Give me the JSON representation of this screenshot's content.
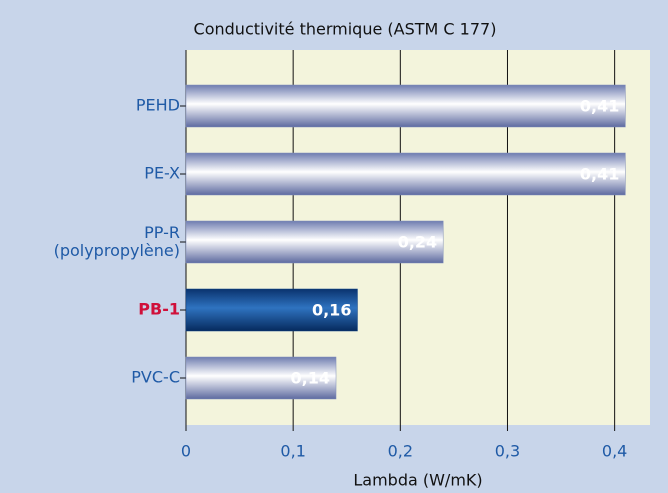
{
  "chart_data": {
    "type": "bar",
    "orientation": "horizontal",
    "title": "Conductivité thermique (ASTM C 177)",
    "x_label": "Lambda (W/mK)",
    "categories": [
      "PEHD",
      "PE-X",
      "PP-R\n(polypropylène)",
      "PB-1",
      "PVC-C"
    ],
    "values": [
      0.41,
      0.41,
      0.24,
      0.16,
      0.14
    ],
    "value_labels": [
      "0,41",
      "0,41",
      "0,24",
      "0,16",
      "0,14"
    ],
    "colors": [
      "#7e8cbc",
      "#7e8cbc",
      "#7e8cbc",
      "#0b3f82",
      "#7e8cbc"
    ],
    "label_colors": [
      "#1f5aa6",
      "#1f5aa6",
      "#1f5aa6",
      "#d0103a",
      "#1f5aa6"
    ],
    "xlim": [
      0,
      0.433
    ],
    "xticks": [
      0,
      {
        "value": 0.1,
        "label": "0,1"
      },
      {
        "value": 0.2,
        "label": "0,2"
      },
      {
        "value": 0.3,
        "label": "0,3"
      },
      {
        "value": 0.4,
        "label": "0,4"
      }
    ],
    "grid": true
  }
}
